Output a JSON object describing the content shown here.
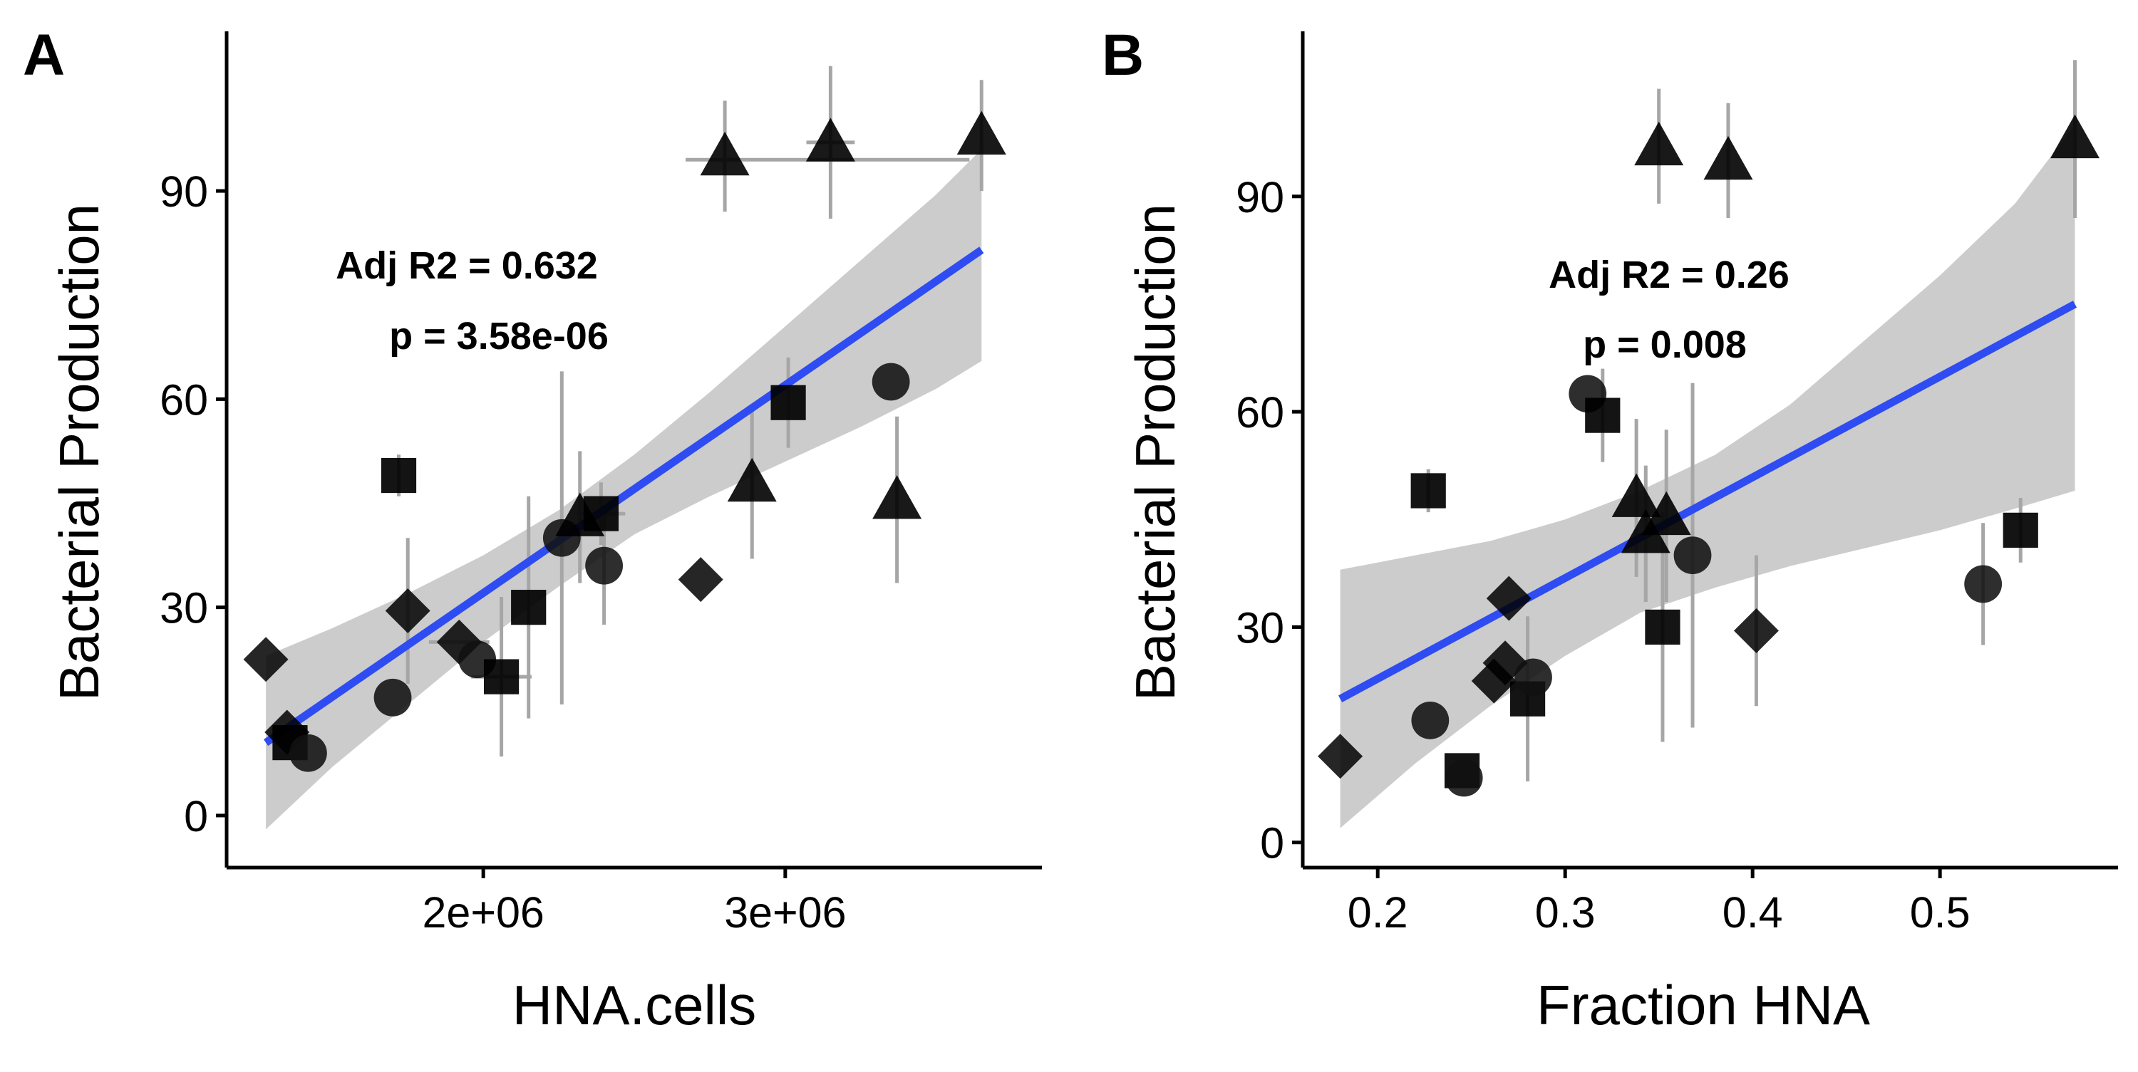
{
  "chart_data": [
    {
      "type": "scatter",
      "panel_label": "A",
      "xlabel": "HNA.cells",
      "ylabel": "Bacterial Production",
      "x_ticks": [
        2000000,
        3000000
      ],
      "x_tick_labels": [
        "2e+06",
        "3e+06"
      ],
      "y_ticks": [
        0,
        30,
        60,
        90
      ],
      "y_tick_labels": [
        "0",
        "30",
        "60",
        "90"
      ],
      "xlim": [
        1150000,
        3850000
      ],
      "ylim": [
        -7.5,
        113
      ],
      "grid": false,
      "annotations": [
        "Adj R2 = 0.632",
        "p = 3.58e-06"
      ],
      "fit_line": {
        "x": [
          1280000,
          3650000
        ],
        "y": [
          10.5,
          81.5
        ]
      },
      "confidence_band": {
        "x": [
          1280000,
          1500000,
          1750000,
          2000000,
          2250000,
          2500000,
          2750000,
          3000000,
          3250000,
          3500000,
          3650000
        ],
        "lower": [
          -2,
          7,
          16,
          25,
          33,
          40.5,
          46,
          51,
          56,
          61.5,
          65.5
        ],
        "upper": [
          23,
          27,
          32,
          37.5,
          44,
          52,
          61,
          70.5,
          80,
          89.5,
          96
        ]
      },
      "points": [
        {
          "x": 1280000,
          "y": 22.5,
          "shape": "diamond",
          "y_err": 0,
          "x_err": 0
        },
        {
          "x": 1350000,
          "y": 12,
          "shape": "diamond",
          "y_err": 0,
          "x_err": 0
        },
        {
          "x": 1360000,
          "y": 10.5,
          "shape": "square",
          "y_err": 0,
          "x_err": 0
        },
        {
          "x": 1420000,
          "y": 9,
          "shape": "circle",
          "y_err": 0,
          "x_err": 0
        },
        {
          "x": 1700000,
          "y": 17,
          "shape": "circle",
          "y_err": 0,
          "x_err": 0
        },
        {
          "x": 1720000,
          "y": 49,
          "shape": "square",
          "y_err": 3,
          "x_err": 0
        },
        {
          "x": 1750000,
          "y": 29.5,
          "shape": "diamond",
          "y_err": 10.5,
          "x_err": 0
        },
        {
          "x": 1920000,
          "y": 25,
          "shape": "diamond",
          "y_err": 0,
          "x_err": 100000
        },
        {
          "x": 1980000,
          "y": 22.5,
          "shape": "circle",
          "y_err": 0,
          "x_err": 0
        },
        {
          "x": 2060000,
          "y": 20,
          "shape": "square",
          "y_err": 11.5,
          "x_err": 100000
        },
        {
          "x": 2150000,
          "y": 30,
          "shape": "square",
          "y_err": 16,
          "x_err": 0
        },
        {
          "x": 2260000,
          "y": 40,
          "shape": "circle",
          "y_err": 24,
          "x_err": 0
        },
        {
          "x": 2320000,
          "y": 43,
          "shape": "triangle",
          "y_err": 9.5,
          "x_err": 0
        },
        {
          "x": 2390000,
          "y": 43.5,
          "shape": "square",
          "y_err": 4.5,
          "x_err": 80000
        },
        {
          "x": 2400000,
          "y": 36,
          "shape": "circle",
          "y_err": 8.5,
          "x_err": 0
        },
        {
          "x": 2720000,
          "y": 34,
          "shape": "diamond",
          "y_err": 0,
          "x_err": 0
        },
        {
          "x": 2800000,
          "y": 95,
          "shape": "triangle",
          "y_err": 8,
          "x_err": 0
        },
        {
          "x": 2890000,
          "y": 48,
          "shape": "triangle",
          "y_err": 11,
          "x_err": 0
        },
        {
          "x": 3010000,
          "y": 59.5,
          "shape": "square",
          "y_err": 6.5,
          "x_err": 0
        },
        {
          "x": 3150000,
          "y": 97,
          "shape": "triangle",
          "y_err": 11,
          "x_err": 80000
        },
        {
          "x": 3140000,
          "y": 94.5,
          "shape": "none",
          "y_err": 0,
          "x_err": 470000
        },
        {
          "x": 3350000,
          "y": 62.5,
          "shape": "circle",
          "y_err": 0,
          "x_err": 0
        },
        {
          "x": 3370000,
          "y": 45.5,
          "shape": "triangle",
          "y_err": 12,
          "x_err": 0
        },
        {
          "x": 3650000,
          "y": 98,
          "shape": "triangle",
          "y_err": 8,
          "x_err": 0
        }
      ]
    },
    {
      "type": "scatter",
      "panel_label": "B",
      "xlabel": "Fraction HNA",
      "ylabel": "Bacterial Production",
      "x_ticks": [
        0.2,
        0.3,
        0.4,
        0.5
      ],
      "x_tick_labels": [
        "0.2",
        "0.3",
        "0.4",
        "0.5"
      ],
      "y_ticks": [
        0,
        30,
        60,
        90
      ],
      "y_tick_labels": [
        "0",
        "30",
        "60",
        "90"
      ],
      "xlim": [
        0.16,
        0.595
      ],
      "ylim": [
        -3.5,
        113
      ],
      "grid": false,
      "annotations": [
        "Adj R2 = 0.26",
        "p = 0.008"
      ],
      "fit_line": {
        "x": [
          0.18,
          0.572
        ],
        "y": [
          20,
          75
        ]
      },
      "confidence_band": {
        "x": [
          0.18,
          0.22,
          0.26,
          0.3,
          0.34,
          0.38,
          0.42,
          0.46,
          0.5,
          0.54,
          0.572
        ],
        "lower": [
          2,
          11,
          19,
          26,
          32,
          35.5,
          38.5,
          41,
          43.5,
          46.5,
          49
        ],
        "upper": [
          38,
          40,
          42,
          45,
          49,
          54,
          61,
          70,
          79,
          89,
          100
        ]
      },
      "points": [
        {
          "x": 0.18,
          "y": 12,
          "shape": "diamond",
          "y_err": 0
        },
        {
          "x": 0.227,
          "y": 49,
          "shape": "square",
          "y_err": 3
        },
        {
          "x": 0.228,
          "y": 17,
          "shape": "circle",
          "y_err": 0
        },
        {
          "x": 0.245,
          "y": 10,
          "shape": "square",
          "y_err": 0
        },
        {
          "x": 0.246,
          "y": 9,
          "shape": "circle",
          "y_err": 0
        },
        {
          "x": 0.262,
          "y": 22.5,
          "shape": "diamond",
          "y_err": 0
        },
        {
          "x": 0.268,
          "y": 25,
          "shape": "diamond",
          "y_err": 0
        },
        {
          "x": 0.27,
          "y": 34,
          "shape": "diamond",
          "y_err": 0
        },
        {
          "x": 0.28,
          "y": 20,
          "shape": "square",
          "y_err": 11.5
        },
        {
          "x": 0.283,
          "y": 23,
          "shape": "circle",
          "y_err": 0
        },
        {
          "x": 0.312,
          "y": 62.5,
          "shape": "circle",
          "y_err": 0
        },
        {
          "x": 0.32,
          "y": 59.5,
          "shape": "square",
          "y_err": 6.5
        },
        {
          "x": 0.338,
          "y": 48,
          "shape": "triangle",
          "y_err": 11
        },
        {
          "x": 0.343,
          "y": 43,
          "shape": "triangle",
          "y_err": 9.5
        },
        {
          "x": 0.35,
          "y": 97,
          "shape": "triangle",
          "y_err": 8
        },
        {
          "x": 0.352,
          "y": 30,
          "shape": "square",
          "y_err": 16
        },
        {
          "x": 0.354,
          "y": 45.5,
          "shape": "triangle",
          "y_err": 12
        },
        {
          "x": 0.368,
          "y": 40,
          "shape": "circle",
          "y_err": 24
        },
        {
          "x": 0.387,
          "y": 95,
          "shape": "triangle",
          "y_err": 8
        },
        {
          "x": 0.402,
          "y": 29.5,
          "shape": "diamond",
          "y_err": 10.5
        },
        {
          "x": 0.523,
          "y": 36,
          "shape": "circle",
          "y_err": 8.5
        },
        {
          "x": 0.543,
          "y": 43.5,
          "shape": "square",
          "y_err": 4.5
        },
        {
          "x": 0.572,
          "y": 98,
          "shape": "triangle",
          "y_err": 11
        }
      ]
    }
  ]
}
